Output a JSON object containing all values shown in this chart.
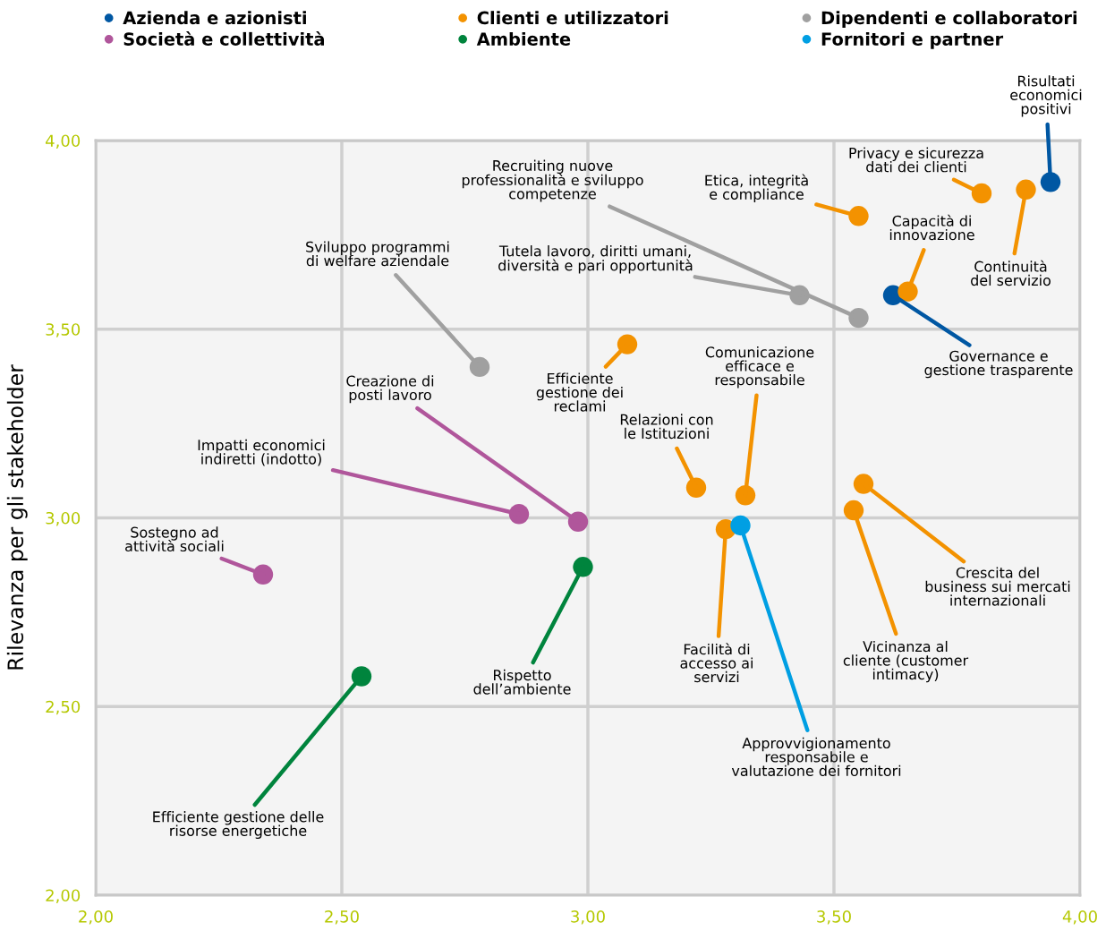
{
  "chart_data": {
    "type": "scatter",
    "ylabel": "Rilevanza per gli stakeholder",
    "xlim": [
      2.0,
      4.0
    ],
    "ylim": [
      2.0,
      4.0
    ],
    "xticks": [
      {
        "value": 2.0,
        "label": "2,00"
      },
      {
        "value": 2.5,
        "label": "2,50"
      },
      {
        "value": 3.0,
        "label": "3,00"
      },
      {
        "value": 3.5,
        "label": "3,50"
      },
      {
        "value": 4.0,
        "label": "4,00"
      }
    ],
    "yticks": [
      {
        "value": 2.0,
        "label": "2,00"
      },
      {
        "value": 2.5,
        "label": "2,50"
      },
      {
        "value": 3.0,
        "label": "3,00"
      },
      {
        "value": 3.5,
        "label": "3,50"
      },
      {
        "value": 4.0,
        "label": "4,00"
      }
    ],
    "grid": true,
    "legend": "top",
    "marker": "circle",
    "series": [
      {
        "name": "Azienda e azionisti",
        "color": "#0057a3",
        "x": [
          3.94,
          3.62
        ],
        "values": [
          3.89,
          3.59
        ]
      },
      {
        "name": "Clienti e utilizzatori",
        "color": "#f39200",
        "x": [
          3.8,
          3.89,
          3.55,
          3.65,
          3.08,
          3.22,
          3.32,
          3.28,
          3.56,
          3.54
        ],
        "values": [
          3.86,
          3.87,
          3.8,
          3.6,
          3.46,
          3.08,
          3.06,
          2.97,
          3.09,
          3.02
        ]
      },
      {
        "name": "Dipendenti e collaboratori",
        "color": "#a0a0a0",
        "x": [
          3.55,
          3.43,
          2.78
        ],
        "values": [
          3.53,
          3.59,
          3.4
        ]
      },
      {
        "name": "Società e collettività",
        "color": "#b0569b",
        "x": [
          2.98,
          2.86,
          2.34
        ],
        "values": [
          2.99,
          3.01,
          2.85
        ]
      },
      {
        "name": "Ambiente",
        "color": "#00843d",
        "x": [
          2.99,
          2.54
        ],
        "values": [
          2.87,
          2.58
        ]
      },
      {
        "name": "Fornitori e partner",
        "color": "#009fe3",
        "x": [
          3.31
        ],
        "values": [
          2.98
        ]
      }
    ],
    "annotations": [
      {
        "text": "Risultati\neconomici\npositivi",
        "x": 3.94,
        "y": 3.89
      },
      {
        "text": "Governance e\ngestione trasparente",
        "x": 3.62,
        "y": 3.59
      },
      {
        "text": "Privacy e sicurezza\ndati dei clienti",
        "x": 3.8,
        "y": 3.86
      },
      {
        "text": "Continuità\ndel servizio",
        "x": 3.89,
        "y": 3.87
      },
      {
        "text": "Etica, integrità\ne compliance",
        "x": 3.55,
        "y": 3.8
      },
      {
        "text": "Capacità di\ninnovazione",
        "x": 3.65,
        "y": 3.6
      },
      {
        "text": "Efficiente\ngestione dei\nreclami",
        "x": 3.08,
        "y": 3.46
      },
      {
        "text": "Relazioni con\nle Istituzioni",
        "x": 3.22,
        "y": 3.08
      },
      {
        "text": "Comunicazione\nefficace e\nresponsabile",
        "x": 3.32,
        "y": 3.06
      },
      {
        "text": "Facilità di\naccesso ai\nservizi",
        "x": 3.28,
        "y": 2.97
      },
      {
        "text": "Crescita del\nbusiness sui mercati\ninternazionali",
        "x": 3.56,
        "y": 3.09
      },
      {
        "text": "Vicinanza al\ncliente (customer\nintimacy)",
        "x": 3.54,
        "y": 3.02
      },
      {
        "text": "Recruiting nuove\nprofessionalità e sviluppo\ncompetenze",
        "x": 3.55,
        "y": 3.53
      },
      {
        "text": "Tutela lavoro, diritti umani,\ndiversità e pari opportunità",
        "x": 3.43,
        "y": 3.59
      },
      {
        "text": "Sviluppo programmi\ndi welfare aziendale",
        "x": 2.78,
        "y": 3.4
      },
      {
        "text": "Creazione di\nposti lavoro",
        "x": 2.98,
        "y": 2.99
      },
      {
        "text": "Impatti economici\nindiretti (indotto)",
        "x": 2.86,
        "y": 3.01
      },
      {
        "text": "Sostegno ad\nattività sociali",
        "x": 2.34,
        "y": 2.85
      },
      {
        "text": "Rispetto\ndell’ambiente",
        "x": 2.99,
        "y": 2.87
      },
      {
        "text": "Efficiente gestione delle\nrisorse energetiche",
        "x": 2.54,
        "y": 2.58
      },
      {
        "text": "Approvvigionamento\nresponsabile e\nvalutazione dei fornitori",
        "x": 3.31,
        "y": 2.98
      }
    ]
  }
}
